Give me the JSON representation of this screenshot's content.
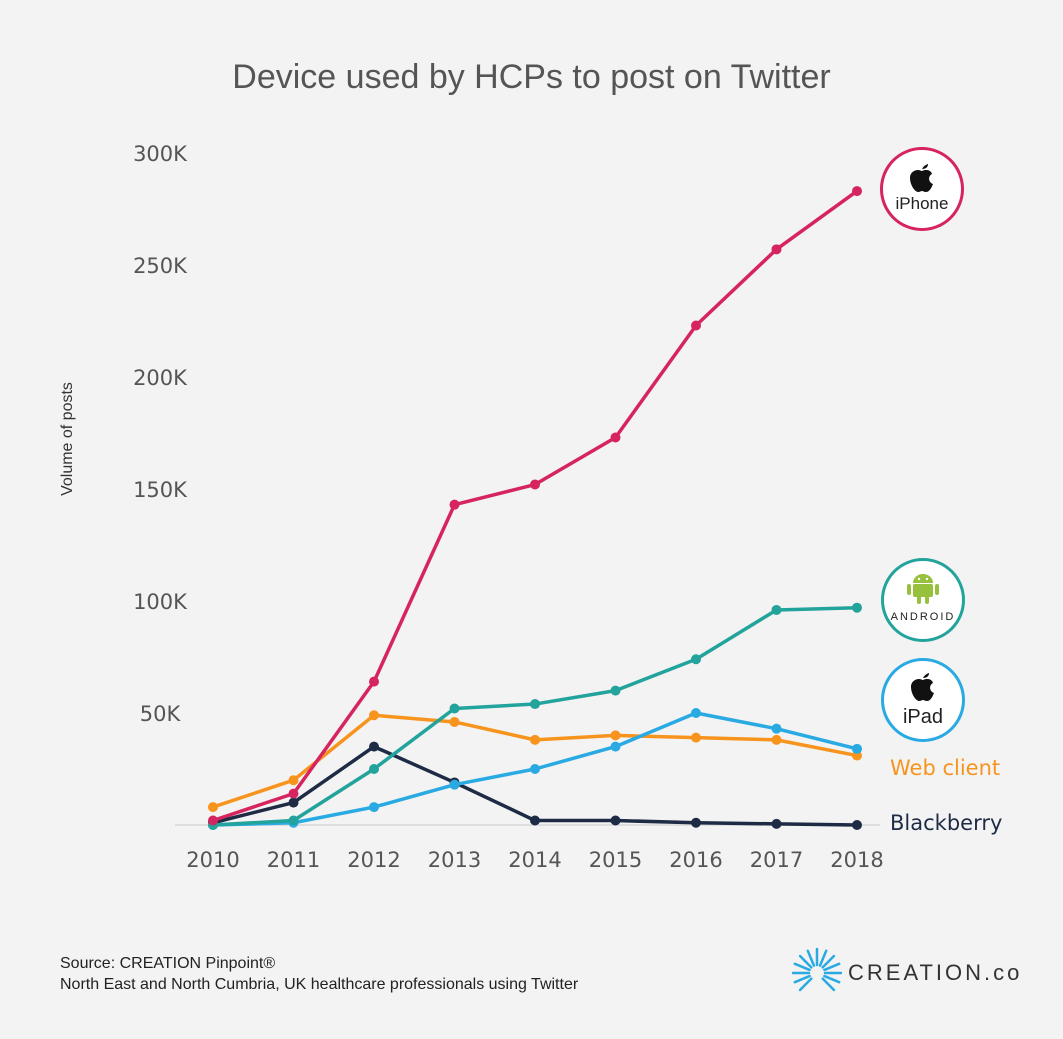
{
  "chart_data": {
    "type": "line",
    "title": "Device used by HCPs to post on Twitter",
    "xlabel": "",
    "ylabel": "Volume of posts",
    "x": [
      "2010",
      "2011",
      "2012",
      "2013",
      "2014",
      "2015",
      "2016",
      "2017",
      "2018"
    ],
    "ylim": [
      0,
      300000
    ],
    "yticks": [
      50000,
      100000,
      150000,
      200000,
      250000,
      300000
    ],
    "ytick_labels": [
      "50K",
      "100K",
      "150K",
      "200K",
      "250K",
      "300K"
    ],
    "grid": false,
    "legend_placement": "right (labels at line ends)",
    "series": [
      {
        "name": "iPhone",
        "color": "#d6245f",
        "values": [
          2000,
          14000,
          64000,
          143000,
          152000,
          173000,
          223000,
          257000,
          283000
        ]
      },
      {
        "name": "Android",
        "color": "#22a39b",
        "values": [
          0,
          2000,
          25000,
          52000,
          54000,
          60000,
          74000,
          96000,
          97000
        ]
      },
      {
        "name": "iPad",
        "color": "#29aae2",
        "values": [
          0,
          1000,
          8000,
          18000,
          25000,
          35000,
          50000,
          43000,
          34000
        ]
      },
      {
        "name": "Web client",
        "color": "#f7941d",
        "values": [
          8000,
          20000,
          49000,
          46000,
          38000,
          40000,
          39000,
          38000,
          31000
        ]
      },
      {
        "name": "Blackberry",
        "color": "#1e2b45",
        "values": [
          1000,
          10000,
          35000,
          19000,
          2000,
          2000,
          1000,
          500,
          0
        ]
      }
    ]
  },
  "legend": {
    "iphone": "iPhone",
    "android": "ANDROID",
    "ipad": "iPad",
    "web": "Web client",
    "blackberry": "Blackberry"
  },
  "footer": {
    "source": "Source: CREATION Pinpoint®",
    "note": "North East and North Cumbria, UK healthcare professionals using Twitter",
    "brand": "CREATION.co"
  }
}
